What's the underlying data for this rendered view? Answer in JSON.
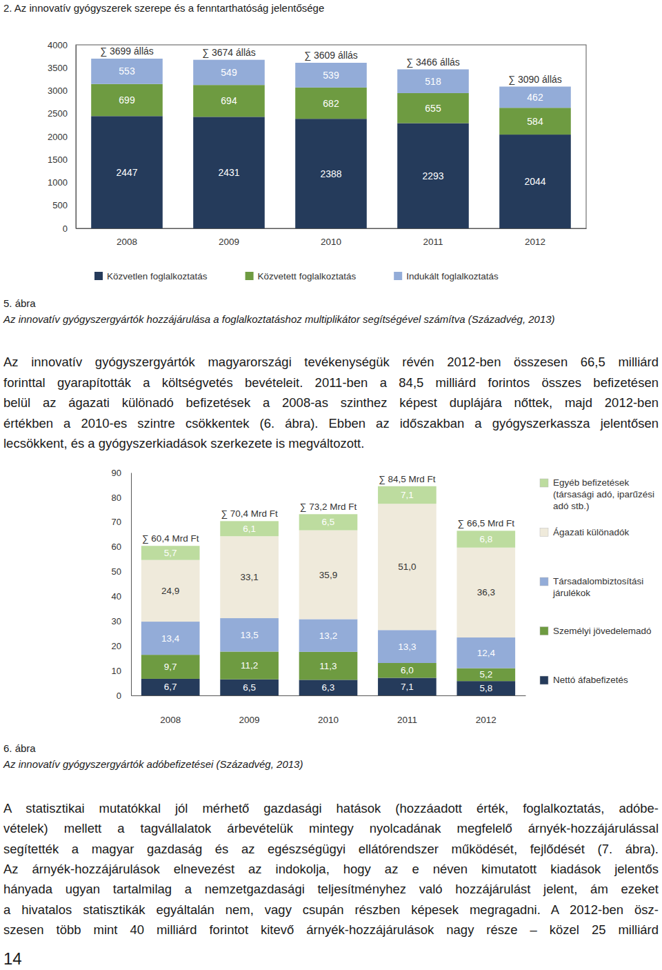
{
  "header": "2. Az innovatív gyógyszerek szerepe és a fenntarthatóság jelentősége",
  "chart_data": [
    {
      "type": "bar",
      "stacked": true,
      "data_labels": true,
      "grid": false,
      "legend": "bottom",
      "categories": [
        "2008",
        "2009",
        "2010",
        "2011",
        "2012"
      ],
      "ylim": [
        0,
        4000
      ],
      "yticks": [
        0,
        500,
        1000,
        1500,
        2000,
        2500,
        3000,
        3500,
        4000
      ],
      "series": [
        {
          "name": "Közvetlen foglalkoztatás",
          "color": "#253b5b",
          "values": [
            2447,
            2431,
            2388,
            2293,
            2044
          ]
        },
        {
          "name": "Közvetett foglalkoztatás",
          "color": "#6e9b41",
          "values": [
            699,
            694,
            682,
            655,
            584
          ]
        },
        {
          "name": "Indukált foglalkoztatás",
          "color": "#93acd8",
          "values": [
            553,
            549,
            539,
            518,
            462
          ]
        }
      ],
      "totals": {
        "values": [
          3699,
          3674,
          3609,
          3466,
          3090
        ],
        "value_labels": [
          "∑ 3699 állás",
          "∑ 3674 állás",
          "∑ 3609 állás",
          "∑ 3466 állás",
          "∑ 3090 állás"
        ]
      }
    },
    {
      "type": "bar",
      "stacked": true,
      "data_labels": true,
      "grid": false,
      "legend": "right",
      "categories": [
        "2008",
        "2009",
        "2010",
        "2011",
        "2012"
      ],
      "ylim": [
        0,
        90
      ],
      "yticks": [
        0,
        10,
        20,
        30,
        40,
        50,
        60,
        70,
        80,
        90
      ],
      "series": [
        {
          "name": "Nettó áfabefizetés",
          "color": "#253b5b",
          "values": [
            6.7,
            6.5,
            6.3,
            7.1,
            5.8
          ],
          "value_labels": [
            "6,7",
            "6,5",
            "6,3",
            "7,1",
            "5,8"
          ]
        },
        {
          "name": "Személyi jövedelemadó",
          "color": "#6e9b41",
          "values": [
            9.7,
            11.2,
            11.3,
            6.0,
            5.2
          ],
          "value_labels": [
            "9,7",
            "11,2",
            "11,3",
            "6,0",
            "5,2"
          ]
        },
        {
          "name": "Társadalombiztosítási járulékok",
          "color": "#93acd8",
          "values": [
            13.4,
            13.5,
            13.2,
            13.3,
            12.4
          ],
          "value_labels": [
            "13,4",
            "13,5",
            "13,2",
            "13,3",
            "12,4"
          ]
        },
        {
          "name": "Ágazati különadók",
          "color": "#efeadb",
          "values": [
            24.9,
            33.1,
            35.9,
            51.0,
            36.3
          ],
          "value_labels": [
            "24,9",
            "33,1",
            "35,9",
            "51,0",
            "36,3"
          ]
        },
        {
          "name": "Egyéb befizetések (társasági adó, iparűzési adó stb.)",
          "color": "#bddc9f",
          "values": [
            5.7,
            6.1,
            6.5,
            7.1,
            6.8
          ],
          "value_labels": [
            "5,7",
            "6,1",
            "6,5",
            "7,1",
            "6,8"
          ]
        }
      ],
      "totals": {
        "values": [
          60.4,
          70.4,
          73.2,
          84.5,
          66.5
        ],
        "value_labels": [
          "∑ 60,4 Mrd Ft",
          "∑ 70,4 Mrd Ft",
          "∑ 73,2 Mrd Ft",
          "∑ 84,5 Mrd Ft",
          "∑ 66,5 Mrd Ft"
        ]
      }
    }
  ],
  "captions": [
    {
      "label": "5. ábra",
      "text": "Az innovatív gyógyszergyártók hozzájárulása a foglalkoztatáshoz multiplikátor segítségével számítva (Századvég, 2013)"
    },
    {
      "label": "6. ábra",
      "text": "Az innovatív gyógyszergyártók adóbefizetései (Századvég, 2013)"
    }
  ],
  "paragraphs": [
    {
      "lines": [
        "Az innovatív gyógyszergyártók magyarországi tevékenységük révén 2012-ben összesen 66,5 milliárd",
        "forinttal gyarapították a költségvetés bevételeit. 2011-ben a 84,5 milliárd forintos összes befizetésen",
        "belül az ágazati különadó befizetések a 2008-as szinthez képest duplájára nőttek, majd 2012-ben",
        "értékben a 2010-es szintre csökkentek (6. ábra). Ebben az időszakban a gyógyszerkassza jelentősen",
        "lecsökkent, és a gyógyszerkiadások szerkezete is megváltozott."
      ]
    },
    {
      "lines": [
        "A statisztikai mutatókkal jól mérhető gazdasági hatások (hozzáadott érték, foglalkoztatás, adóbe-",
        "vételek) mellett a tagvállalatok árbevételük mintegy nyolcadának megfelelő árnyék-hozzájárulással",
        "segítették a magyar gazdaság és az egészségügyi ellátórendszer működését, fejlődését (7. ábra).",
        "Az árnyék-hozzájárulások elnevezést az indokolja, hogy az e néven kimutatott kiadások jelentős",
        "hányada ugyan tartalmilag a nemzetgazdasági teljesítményhez való hozzájárulást jelent, ám ezeket",
        "a hivatalos statisztikák egyáltalán nem, vagy csupán részben képesek megragadni. A 2012-ben ösz-",
        "szesen több mint 40 milliárd forintot kitevő árnyék-hozzájárulások nagy része – közel 25 milliárd"
      ]
    }
  ],
  "page_number": "14"
}
